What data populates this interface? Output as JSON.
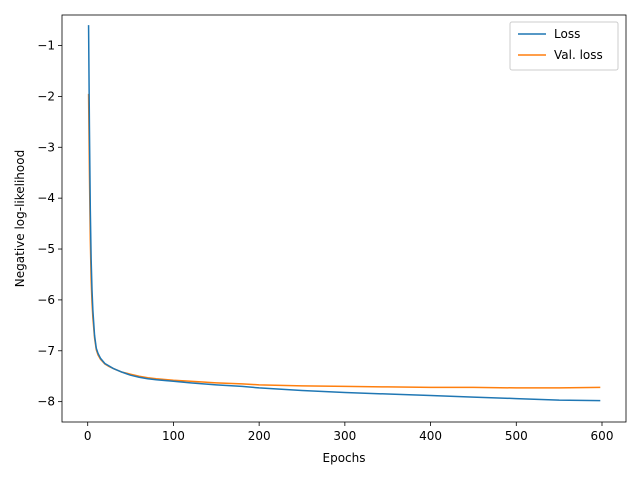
{
  "chart_data": {
    "type": "line",
    "title": "",
    "xlabel": "Epochs",
    "ylabel": "Negative log-likelihood",
    "xlim": [
      -30,
      628
    ],
    "ylim": [
      -8.4,
      -0.4
    ],
    "xticks": [
      0,
      100,
      200,
      300,
      400,
      500,
      600
    ],
    "yticks": [
      -8,
      -7,
      -6,
      -5,
      -4,
      -3,
      -2,
      -1
    ],
    "ytick_labels": [
      "−8",
      "−7",
      "−6",
      "−5",
      "−4",
      "−3",
      "−2",
      "−1"
    ],
    "grid": false,
    "legend_position": "top-right",
    "series": [
      {
        "name": "Loss",
        "color": "#1f77b4",
        "x": [
          1,
          2,
          3,
          4,
          5,
          6,
          8,
          10,
          12,
          15,
          20,
          25,
          30,
          40,
          50,
          60,
          70,
          80,
          100,
          120,
          150,
          180,
          200,
          250,
          300,
          350,
          400,
          450,
          500,
          550,
          598
        ],
        "y": [
          -0.6,
          -2.6,
          -4.2,
          -5.2,
          -5.8,
          -6.2,
          -6.7,
          -6.95,
          -7.05,
          -7.15,
          -7.25,
          -7.3,
          -7.35,
          -7.42,
          -7.48,
          -7.52,
          -7.55,
          -7.57,
          -7.6,
          -7.63,
          -7.67,
          -7.7,
          -7.73,
          -7.78,
          -7.82,
          -7.85,
          -7.88,
          -7.91,
          -7.94,
          -7.97,
          -7.98
        ]
      },
      {
        "name": "Val. loss",
        "color": "#ff7f0e",
        "x": [
          1,
          2,
          3,
          4,
          5,
          6,
          8,
          10,
          12,
          15,
          20,
          25,
          30,
          40,
          50,
          60,
          70,
          80,
          100,
          120,
          150,
          180,
          200,
          250,
          300,
          350,
          400,
          450,
          500,
          550,
          598
        ],
        "y": [
          -1.95,
          -3.5,
          -4.8,
          -5.6,
          -6.05,
          -6.35,
          -6.75,
          -6.98,
          -7.08,
          -7.17,
          -7.26,
          -7.31,
          -7.35,
          -7.42,
          -7.46,
          -7.5,
          -7.53,
          -7.55,
          -7.58,
          -7.6,
          -7.63,
          -7.65,
          -7.67,
          -7.69,
          -7.7,
          -7.71,
          -7.72,
          -7.72,
          -7.73,
          -7.73,
          -7.72
        ]
      }
    ]
  }
}
